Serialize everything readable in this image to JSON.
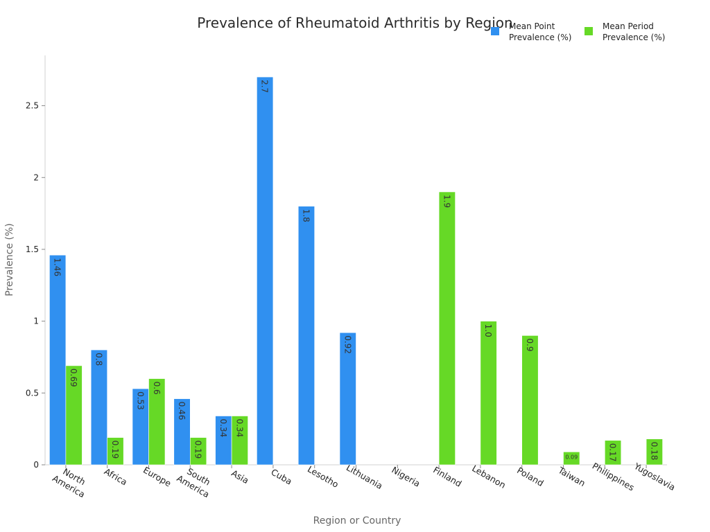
{
  "chart_data": {
    "type": "bar",
    "title": "Prevalence of Rheumatoid Arthritis by Region",
    "xlabel": "Region or Country",
    "ylabel": "Prevalence (%)",
    "ylim": [
      0,
      2.85
    ],
    "yticks": [
      0,
      0.5,
      1,
      1.5,
      2,
      2.5
    ],
    "ytick_labels": [
      "0",
      "0.5",
      "1",
      "1.5",
      "2",
      "2.5"
    ],
    "categories": [
      [
        "North",
        "America"
      ],
      [
        "Africa"
      ],
      [
        "Europe"
      ],
      [
        "South",
        "America"
      ],
      [
        "Asia"
      ],
      [
        "Cuba"
      ],
      [
        "Lesotho"
      ],
      [
        "Lithuania"
      ],
      [
        "Nigeria"
      ],
      [
        "Finland"
      ],
      [
        "Lebanon"
      ],
      [
        "Poland"
      ],
      [
        "Taiwan"
      ],
      [
        "Philippines"
      ],
      [
        "Yugoslavia"
      ]
    ],
    "series": [
      {
        "name": [
          "Mean Point",
          "Prevalence (%)"
        ],
        "color": "#3090f0",
        "values": [
          1.46,
          0.8,
          0.53,
          0.46,
          0.34,
          2.7,
          1.8,
          0.92,
          null,
          null,
          null,
          null,
          null,
          null,
          null
        ],
        "labels": [
          "1.46",
          "0.8",
          "0.53",
          "0.46",
          "0.34",
          "2.7",
          "1.8",
          "0.92",
          "",
          "",
          "",
          "",
          "",
          "",
          ""
        ]
      },
      {
        "name": [
          "Mean Period",
          "Prevalence (%)"
        ],
        "color": "#66d926",
        "values": [
          0.69,
          0.19,
          0.6,
          0.19,
          0.34,
          null,
          null,
          null,
          null,
          1.9,
          1.0,
          0.9,
          0.09,
          0.17,
          0.18
        ],
        "labels": [
          "0.69",
          "0.19",
          "0.6",
          "0.19",
          "0.34",
          "",
          "",
          "",
          "",
          "1.9",
          "1.0",
          "0.9",
          "0.09",
          "0.17",
          "0.18"
        ]
      }
    ],
    "legend_position": "top-right",
    "grid": false
  }
}
